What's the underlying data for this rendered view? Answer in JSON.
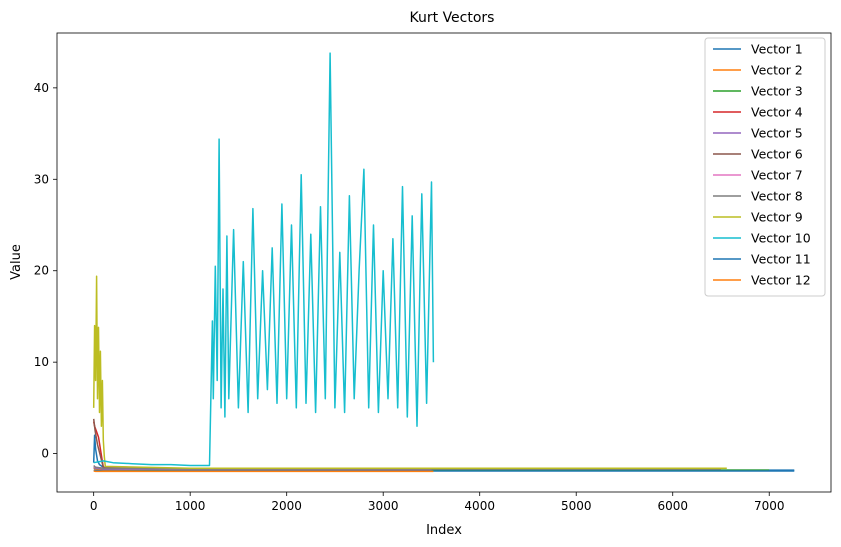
{
  "chart_data": {
    "type": "line",
    "title": "Kurt Vectors",
    "xlabel": "Index",
    "ylabel": "Value",
    "xlim": [
      -380,
      7640
    ],
    "ylim": [
      -4.2,
      46
    ],
    "xticks": [
      0,
      1000,
      2000,
      3000,
      4000,
      5000,
      6000,
      7000
    ],
    "yticks": [
      0,
      10,
      20,
      30,
      40
    ],
    "grid": false,
    "legend_position": "top-right",
    "colors": [
      "#1f77b4",
      "#ff7f0e",
      "#2ca02c",
      "#d62728",
      "#9467bd",
      "#8c564b",
      "#e377c2",
      "#7f7f7f",
      "#bcbd22",
      "#17becf",
      "#1f77b4",
      "#ff7f0e"
    ],
    "series": [
      {
        "name": "Vector 1",
        "x": [
          0,
          10,
          20,
          40,
          60,
          100,
          200,
          1000,
          3000,
          5000,
          7260
        ],
        "y": [
          -1.0,
          2.0,
          0.5,
          -0.8,
          -1.2,
          -1.5,
          -1.7,
          -1.8,
          -1.8,
          -1.8,
          -1.8
        ]
      },
      {
        "name": "Vector 2",
        "x": [
          0,
          20,
          100,
          1000,
          2000,
          3000,
          3520
        ],
        "y": [
          -1.6,
          -1.7,
          -1.8,
          -1.85,
          -1.85,
          -1.85,
          -1.85
        ]
      },
      {
        "name": "Vector 3",
        "x": [
          0,
          20,
          100,
          1000,
          3000,
          5000,
          7000
        ],
        "y": [
          -1.5,
          -1.6,
          -1.7,
          -1.8,
          -1.8,
          -1.8,
          -1.8
        ]
      },
      {
        "name": "Vector 4",
        "x": [
          0,
          10,
          30,
          50,
          70,
          100,
          1000,
          3500
        ],
        "y": [
          3.5,
          3.0,
          2.4,
          1.8,
          0.5,
          -1.5,
          -1.7,
          -1.75
        ]
      },
      {
        "name": "Vector 5",
        "x": [
          0,
          20,
          100,
          1000,
          3500
        ],
        "y": [
          -1.5,
          -1.6,
          -1.7,
          -1.75,
          -1.75
        ]
      },
      {
        "name": "Vector 6",
        "x": [
          0,
          15,
          40,
          100,
          1000,
          3500
        ],
        "y": [
          3.8,
          2.5,
          1.0,
          -1.5,
          -1.7,
          -1.7
        ]
      },
      {
        "name": "Vector 7",
        "x": [
          0,
          20,
          100,
          1000,
          3500
        ],
        "y": [
          -1.4,
          -1.5,
          -1.6,
          -1.7,
          -1.7
        ]
      },
      {
        "name": "Vector 8",
        "x": [
          0,
          20,
          100,
          1000,
          3500,
          6500
        ],
        "y": [
          -1.3,
          -1.5,
          -1.6,
          -1.7,
          -1.7,
          -1.7
        ]
      },
      {
        "name": "Vector 9",
        "x": [
          0,
          10,
          20,
          30,
          40,
          50,
          60,
          70,
          80,
          90,
          100,
          110,
          120,
          1000,
          3500,
          6560
        ],
        "y": [
          5.0,
          14.0,
          8.0,
          19.4,
          6.0,
          13.8,
          4.5,
          11.2,
          3.0,
          8.0,
          1.5,
          -0.3,
          -1.4,
          -1.6,
          -1.6,
          -1.6
        ]
      },
      {
        "name": "Vector 10",
        "x": [
          0,
          100,
          200,
          400,
          600,
          800,
          1000,
          1200,
          1230,
          1240,
          1260,
          1280,
          1300,
          1320,
          1340,
          1360,
          1380,
          1400,
          1450,
          1500,
          1550,
          1600,
          1650,
          1700,
          1750,
          1800,
          1850,
          1900,
          1950,
          2000,
          2050,
          2100,
          2150,
          2200,
          2250,
          2300,
          2350,
          2400,
          2450,
          2500,
          2550,
          2600,
          2650,
          2700,
          2750,
          2800,
          2850,
          2900,
          2950,
          3000,
          3050,
          3100,
          3150,
          3200,
          3250,
          3300,
          3350,
          3400,
          3450,
          3500,
          3520
        ],
        "y": [
          -1.0,
          -0.8,
          -1.0,
          -1.1,
          -1.2,
          -1.2,
          -1.3,
          -1.3,
          14.5,
          6.0,
          20.5,
          8.0,
          34.4,
          5.0,
          18.0,
          4.0,
          23.8,
          6.0,
          24.5,
          5.0,
          21.0,
          4.5,
          26.8,
          6.0,
          20.0,
          7.0,
          22.5,
          5.5,
          27.3,
          6.0,
          25.0,
          5.0,
          30.5,
          5.5,
          24.0,
          4.5,
          27.0,
          6.0,
          43.8,
          5.0,
          22.0,
          4.5,
          28.2,
          6.0,
          20.0,
          31.1,
          5.0,
          25.0,
          4.5,
          20.0,
          6.0,
          23.5,
          5.0,
          29.2,
          4.0,
          26.0,
          3.0,
          28.4,
          5.5,
          29.7,
          10.0
        ]
      },
      {
        "name": "Vector 11",
        "x": [
          0,
          20,
          100,
          1000,
          3000,
          5000,
          7260
        ],
        "y": [
          -1.8,
          -1.85,
          -1.9,
          -1.9,
          -1.9,
          -1.9,
          -1.9
        ]
      },
      {
        "name": "Vector 12",
        "x": [
          0,
          20,
          100,
          1000,
          2000,
          3000,
          3520
        ],
        "y": [
          -1.9,
          -1.95,
          -1.95,
          -1.95,
          -1.95,
          -1.95,
          -1.95
        ]
      }
    ]
  }
}
